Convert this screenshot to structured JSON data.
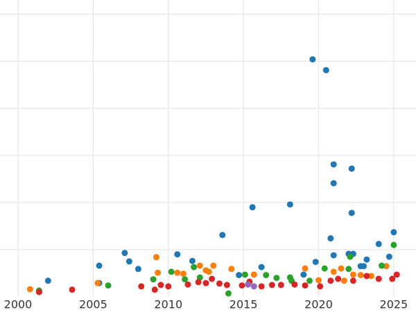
{
  "chart_data": {
    "type": "scatter",
    "grid": true,
    "xlim": [
      1998.8,
      2026.48
    ],
    "xticks": [
      2000,
      2005,
      2010,
      2015,
      2020,
      2025
    ],
    "ylim": [
      0,
      6.3
    ],
    "yticks": [
      1,
      2,
      3,
      4,
      5,
      6
    ],
    "series": [
      {
        "color": "#1f77b4",
        "x": [
          2019.6,
          2020.5,
          2021.0,
          2022.2,
          2021.0,
          2015.6,
          2018.1,
          2022.2,
          2013.6,
          2025.0,
          2020.8,
          2024.0,
          2005.4,
          2007.1,
          2007.4,
          2008.0,
          2010.6,
          2011.6,
          2016.2,
          2023.2,
          2019.8,
          2021.0,
          2022.0,
          2022.3,
          2022.8,
          2023.0,
          2024.7,
          2002.0,
          2005.4,
          2019.0,
          2014.7
        ],
        "values": [
          5.04,
          4.81,
          2.81,
          2.72,
          2.41,
          1.9,
          1.96,
          1.78,
          1.31,
          1.37,
          1.24,
          1.12,
          0.66,
          0.93,
          0.75,
          0.59,
          0.9,
          0.76,
          0.63,
          0.79,
          0.74,
          0.88,
          0.91,
          0.91,
          0.65,
          0.65,
          0.85,
          0.34,
          0.29,
          0.47,
          0.46
        ]
      },
      {
        "color": "#ff7f0e",
        "x": [
          2000.8,
          2005.3,
          2009.2,
          2009.3,
          2010.6,
          2011.0,
          2012.1,
          2012.5,
          2012.7,
          2013.0,
          2014.2,
          2015.7,
          2019.1,
          2021.0,
          2021.5,
          2022.3,
          2022.8,
          2023.5,
          2024.5,
          2020.0,
          2021.7
        ],
        "values": [
          0.16,
          0.29,
          0.84,
          0.51,
          0.51,
          0.49,
          0.66,
          0.56,
          0.53,
          0.66,
          0.59,
          0.47,
          0.6,
          0.53,
          0.6,
          0.47,
          0.46,
          0.44,
          0.65,
          0.35,
          0.34
        ]
      },
      {
        "color": "#2ca02c",
        "x": [
          2001.4,
          2006.0,
          2009.0,
          2010.2,
          2011.1,
          2011.7,
          2012.1,
          2014.0,
          2015.1,
          2016.5,
          2017.2,
          2018.1,
          2020.4,
          2022.0,
          2022.1,
          2024.2,
          2025.0,
          2019.4,
          2018.2
        ],
        "values": [
          0.13,
          0.24,
          0.37,
          0.53,
          0.37,
          0.63,
          0.41,
          0.07,
          0.47,
          0.46,
          0.4,
          0.41,
          0.6,
          0.59,
          0.85,
          0.66,
          1.1,
          0.34,
          0.34
        ]
      },
      {
        "color": "#d62728",
        "x": [
          2001.4,
          2003.6,
          2008.2,
          2009.1,
          2009.5,
          2010.0,
          2011.3,
          2012.0,
          2012.5,
          2012.9,
          2013.4,
          2013.9,
          2014.9,
          2015.4,
          2016.2,
          2016.9,
          2017.5,
          2018.4,
          2019.1,
          2020.1,
          2020.8,
          2021.3,
          2022.3,
          2023.2,
          2024.0,
          2024.9,
          2025.2
        ],
        "values": [
          0.1,
          0.15,
          0.22,
          0.15,
          0.25,
          0.22,
          0.26,
          0.31,
          0.29,
          0.38,
          0.28,
          0.25,
          0.24,
          0.32,
          0.22,
          0.25,
          0.25,
          0.26,
          0.24,
          0.22,
          0.34,
          0.38,
          0.34,
          0.44,
          0.38,
          0.38,
          0.47
        ]
      },
      {
        "color": "#9467bd",
        "x": [
          2015.7,
          2015.3
        ],
        "values": [
          0.22,
          0.26
        ]
      }
    ]
  }
}
